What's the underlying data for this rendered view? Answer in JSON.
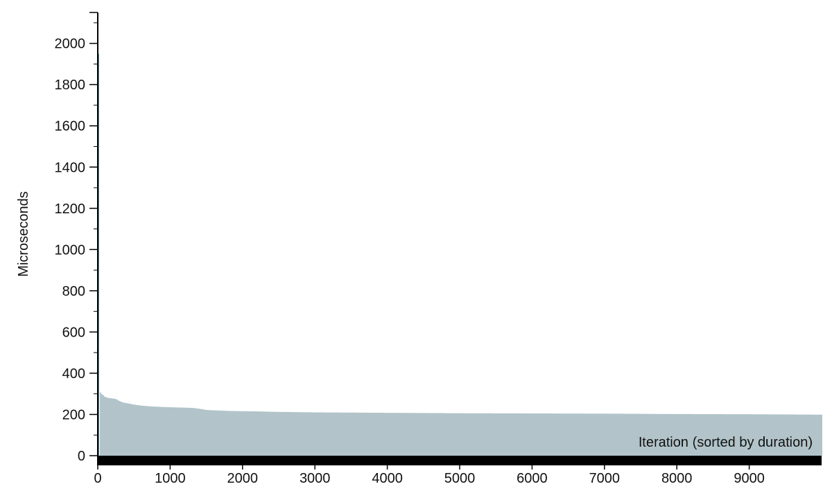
{
  "chart_data": {
    "type": "bar",
    "title": "",
    "xlabel": "Iteration (sorted by duration)",
    "ylabel": "Microseconds",
    "xlim": [
      0,
      10000
    ],
    "ylim": [
      0,
      2150
    ],
    "xticks": [
      0,
      1000,
      2000,
      3000,
      4000,
      5000,
      6000,
      7000,
      8000,
      9000
    ],
    "yticks": [
      0,
      200,
      400,
      600,
      800,
      1000,
      1200,
      1400,
      1600,
      1800,
      2000
    ],
    "grid": false,
    "bar_color": "#4a7582",
    "baseline_color": "#000000",
    "series": [
      {
        "x": [
          0,
          10,
          30,
          50,
          80,
          100,
          150,
          200,
          250,
          300,
          350,
          400,
          500,
          600,
          700,
          800,
          900,
          1000,
          1100,
          1200,
          1300,
          1400,
          1500,
          1600,
          1700,
          1800,
          2000,
          2200,
          2400,
          2600,
          2800,
          3000,
          3500,
          4000,
          4500,
          5000,
          6000,
          7000,
          7500,
          8000,
          9000,
          9500,
          9999
        ],
        "values": [
          1950,
          320,
          312,
          300,
          292,
          285,
          280,
          278,
          275,
          265,
          258,
          255,
          248,
          243,
          240,
          238,
          236,
          235,
          234,
          233,
          232,
          228,
          222,
          220,
          219,
          217,
          216,
          215,
          213,
          212,
          211,
          210,
          209,
          208,
          207,
          206,
          205,
          204,
          203,
          202,
          201,
          200,
          199
        ]
      }
    ]
  }
}
